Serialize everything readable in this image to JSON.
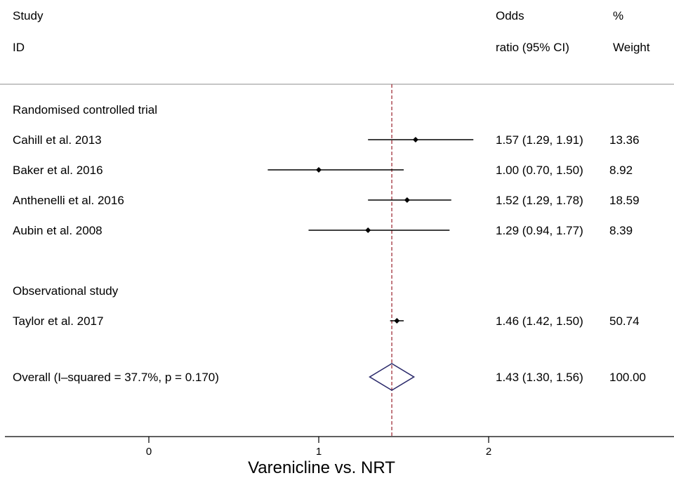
{
  "chart_data": {
    "type": "forest",
    "xlabel": "Varenicline vs. NRT",
    "x_ticks": [
      0,
      1,
      2
    ],
    "x_range": [
      -0.8,
      3.07
    ],
    "header": {
      "col1_line1": "Study",
      "col1_line2": "ID",
      "col2_line1": "Odds",
      "col2_line2": "ratio (95% CI)",
      "col3_line1": "%",
      "col3_line2": "Weight"
    },
    "reference_line": 1.43,
    "groups": [
      {
        "label": "Randomised controlled trial",
        "studies": [
          {
            "name": "Cahill et al. 2013",
            "or": 1.57,
            "lo": 1.29,
            "hi": 1.91,
            "ci_text": "1.57 (1.29, 1.91)",
            "weight": "13.36"
          },
          {
            "name": "Baker et al. 2016",
            "or": 1.0,
            "lo": 0.7,
            "hi": 1.5,
            "ci_text": "1.00 (0.70, 1.50)",
            "weight": "8.92"
          },
          {
            "name": "Anthenelli et al. 2016",
            "or": 1.52,
            "lo": 1.29,
            "hi": 1.78,
            "ci_text": "1.52 (1.29, 1.78)",
            "weight": "18.59"
          },
          {
            "name": "Aubin et al. 2008",
            "or": 1.29,
            "lo": 0.94,
            "hi": 1.77,
            "ci_text": "1.29 (0.94, 1.77)",
            "weight": "8.39"
          }
        ]
      },
      {
        "label": "Observational study",
        "studies": [
          {
            "name": "Taylor et al. 2017",
            "or": 1.46,
            "lo": 1.42,
            "hi": 1.5,
            "ci_text": "1.46 (1.42, 1.50)",
            "weight": "50.74"
          }
        ]
      }
    ],
    "overall": {
      "label": "Overall  (I–squared = 37.7%, p = 0.170)",
      "or": 1.43,
      "lo": 1.3,
      "hi": 1.56,
      "ci_text": "1.43 (1.30, 1.56)",
      "weight": "100.00"
    },
    "colors": {
      "ci_line": "#000000",
      "reference_line": "#a0303a",
      "diamond": "#2b2a6b",
      "separator": "#b3b3b3"
    }
  }
}
